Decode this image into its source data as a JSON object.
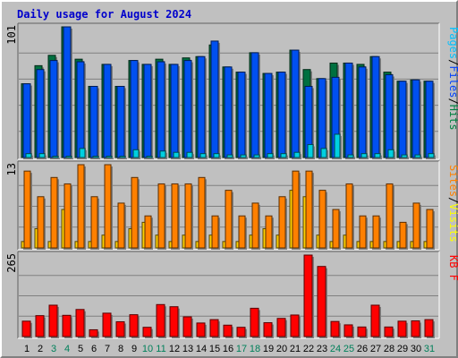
{
  "chart_data": {
    "type": "bar",
    "title": "Daily usage for August 2024",
    "categories": [
      "1",
      "2",
      "3",
      "4",
      "5",
      "6",
      "7",
      "8",
      "9",
      "10",
      "11",
      "12",
      "13",
      "14",
      "15",
      "16",
      "17",
      "18",
      "19",
      "20",
      "21",
      "22",
      "23",
      "24",
      "25",
      "26",
      "27",
      "28",
      "29",
      "30",
      "31"
    ],
    "weekend_days": [
      "3",
      "4",
      "10",
      "11",
      "17",
      "18",
      "24",
      "25",
      "31"
    ],
    "panels": [
      {
        "name": "hits-files-pages",
        "max_label": "101",
        "ylim": [
          0,
          101
        ],
        "legend": [
          {
            "text": "Hits",
            "color": "#008040"
          },
          {
            "text": "Files",
            "color": "#0040ff"
          },
          {
            "text": "Pages",
            "color": "#00c0ff"
          }
        ],
        "series": [
          {
            "name": "Hits",
            "color": "#007040",
            "values": [
              57,
              71,
              79,
              101,
              76,
              55,
              72,
              55,
              75,
              72,
              76,
              72,
              77,
              78,
              87,
              70,
              66,
              81,
              65,
              66,
              83,
              68,
              61,
              73,
              73,
              72,
              78,
              66,
              59,
              60,
              59
            ]
          },
          {
            "name": "Files",
            "color": "#0050f0",
            "values": [
              57,
              68,
              75,
              101,
              74,
              55,
              72,
              55,
              75,
              72,
              74,
              72,
              75,
              78,
              90,
              70,
              66,
              81,
              65,
              66,
              83,
              55,
              61,
              62,
              73,
              70,
              78,
              64,
              59,
              60,
              59
            ]
          },
          {
            "name": "Pages",
            "color": "#00d0e0",
            "values": [
              3,
              3,
              1,
              1,
              7,
              1,
              1,
              1,
              6,
              1,
              5,
              4,
              4,
              3,
              3,
              2,
              2,
              2,
              3,
              3,
              4,
              10,
              7,
              18,
              2,
              3,
              3,
              6,
              2,
              2,
              3
            ]
          }
        ]
      },
      {
        "name": "visits-sites",
        "max_label": "13",
        "ylim": [
          0,
          13
        ],
        "legend": [
          {
            "text": "Visits",
            "color": "#ffff00"
          },
          {
            "text": "Sites",
            "color": "#ff8000"
          }
        ],
        "series": [
          {
            "name": "Sites",
            "color": "#ff8000",
            "values": [
              12,
              8,
              11,
              10,
              13,
              8,
              13,
              7,
              11,
              5,
              10,
              10,
              10,
              11,
              5,
              9,
              5,
              7,
              5,
              8,
              12,
              12,
              9,
              6,
              10,
              5,
              5,
              10,
              4,
              7,
              6
            ]
          },
          {
            "name": "Visits",
            "color": "#ffd000",
            "values": [
              1,
              3,
              1,
              6,
              1,
              1,
              2,
              1,
              3,
              4,
              2,
              1,
              2,
              1,
              2,
              1,
              1,
              2,
              3,
              2,
              9,
              8,
              2,
              1,
              2,
              1,
              1,
              1,
              1,
              1,
              1
            ]
          }
        ]
      },
      {
        "name": "kbytes",
        "max_label": "265",
        "ylim": [
          0,
          265
        ],
        "legend": [
          {
            "text": "KB F",
            "color": "#ff0000"
          }
        ],
        "series": [
          {
            "name": "KB F",
            "color": "#ff0000",
            "values": [
              50,
              68,
              102,
              69,
              88,
              22,
              76,
              48,
              71,
              30,
              104,
              97,
              64,
              44,
              55,
              37,
              30,
              92,
              45,
              59,
              70,
              265,
              228,
              49,
              38,
              31,
              102,
              31,
              50,
              51,
              55
            ]
          }
        ]
      }
    ]
  }
}
